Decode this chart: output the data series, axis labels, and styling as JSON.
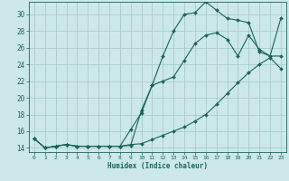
{
  "xlabel": "Humidex (Indice chaleur)",
  "bg_color": "#cce8e8",
  "line_color": "#1a6655",
  "grid_color": "#aacccc",
  "xlim": [
    -0.5,
    23.5
  ],
  "ylim": [
    13.5,
    31.5
  ],
  "xticks": [
    0,
    1,
    2,
    3,
    4,
    5,
    6,
    7,
    8,
    9,
    10,
    11,
    12,
    13,
    14,
    15,
    16,
    17,
    18,
    19,
    20,
    21,
    22,
    23
  ],
  "yticks": [
    14,
    16,
    18,
    20,
    22,
    24,
    26,
    28,
    30
  ],
  "line1_x": [
    0,
    1,
    2,
    3,
    4,
    5,
    6,
    7,
    8,
    9,
    10,
    11,
    12,
    13,
    14,
    15,
    16,
    17,
    18,
    19,
    20,
    21,
    22,
    23
  ],
  "line1_y": [
    15.1,
    14.0,
    14.2,
    14.4,
    14.2,
    14.2,
    14.2,
    14.2,
    14.2,
    14.3,
    18.5,
    21.5,
    25.0,
    28.0,
    30.0,
    30.2,
    31.5,
    30.5,
    29.5,
    29.3,
    29.0,
    25.5,
    25.0,
    29.5
  ],
  "line2_x": [
    0,
    1,
    2,
    3,
    4,
    5,
    6,
    7,
    8,
    9,
    10,
    11,
    12,
    13,
    14,
    15,
    16,
    17,
    18,
    19,
    20,
    21,
    22,
    23
  ],
  "line2_y": [
    15.1,
    14.0,
    14.2,
    14.4,
    14.2,
    14.2,
    14.2,
    14.2,
    14.2,
    16.2,
    18.2,
    21.5,
    22.0,
    22.5,
    24.5,
    26.5,
    27.5,
    27.8,
    27.0,
    25.0,
    27.5,
    25.8,
    25.0,
    25.0
  ],
  "line3_x": [
    0,
    1,
    2,
    3,
    4,
    5,
    6,
    7,
    8,
    9,
    10,
    11,
    12,
    13,
    14,
    15,
    16,
    17,
    18,
    19,
    20,
    21,
    22,
    23
  ],
  "line3_y": [
    15.1,
    14.0,
    14.2,
    14.4,
    14.2,
    14.2,
    14.2,
    14.2,
    14.2,
    14.4,
    14.5,
    15.0,
    15.5,
    16.0,
    16.5,
    17.2,
    18.0,
    19.2,
    20.5,
    21.8,
    23.0,
    24.0,
    24.8,
    23.5
  ]
}
